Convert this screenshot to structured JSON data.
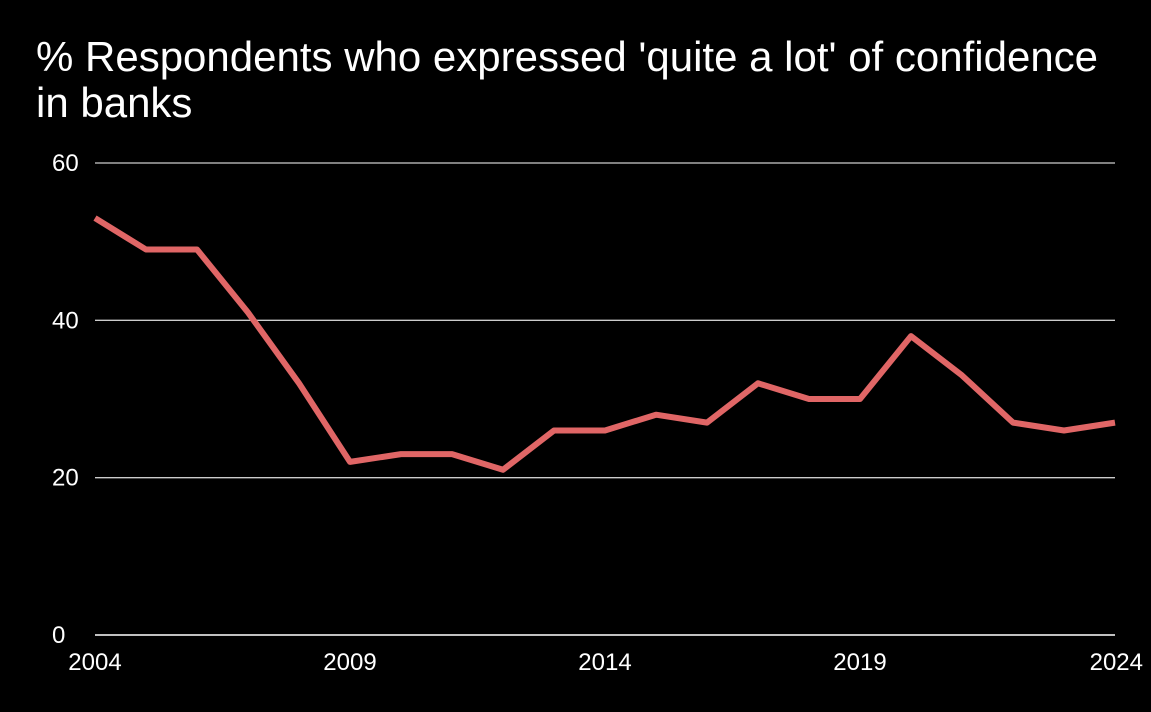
{
  "chart_data": {
    "type": "line",
    "title": "% Respondents who expressed 'quite a lot' of confidence in banks",
    "xlabel": "",
    "ylabel": "",
    "xlim": [
      2004,
      2024
    ],
    "ylim": [
      0,
      60
    ],
    "x_ticks": [
      2004,
      2009,
      2014,
      2019,
      2024
    ],
    "y_ticks": [
      0,
      20,
      40,
      60
    ],
    "grid": true,
    "series": [
      {
        "name": "Confidence in banks",
        "color": "#e06666",
        "x": [
          2004,
          2005,
          2006,
          2007,
          2008,
          2009,
          2010,
          2011,
          2012,
          2013,
          2014,
          2015,
          2016,
          2017,
          2018,
          2019,
          2020,
          2021,
          2022,
          2023,
          2024
        ],
        "values": [
          53,
          49,
          49,
          41,
          32,
          22,
          23,
          23,
          21,
          26,
          26,
          28,
          27,
          32,
          30,
          30,
          38,
          33,
          27,
          26,
          27
        ]
      }
    ]
  },
  "colors": {
    "background": "#000000",
    "text": "#ffffff",
    "grid": "#cccccc",
    "axis": "#ffffff",
    "line": "#e06666"
  }
}
